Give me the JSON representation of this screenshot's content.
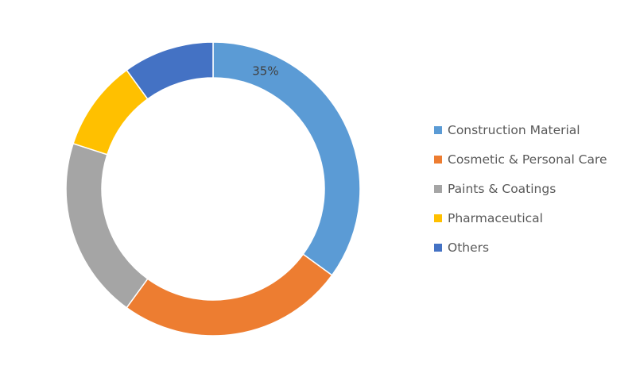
{
  "chart_data": {
    "type": "pie",
    "variant": "donut",
    "title": "",
    "categories": [
      "Construction Material",
      "Cosmetic & Personal Care",
      "Paints & Coatings",
      "Pharmaceutical",
      "Others"
    ],
    "values": [
      35,
      25,
      20,
      10,
      10
    ],
    "colors": [
      "#5B9BD5",
      "#ED7D31",
      "#A5A5A5",
      "#FFC000",
      "#4472C4"
    ],
    "data_labels": [
      {
        "category": "Construction Material",
        "text": "35%"
      }
    ],
    "legend_position": "right"
  }
}
